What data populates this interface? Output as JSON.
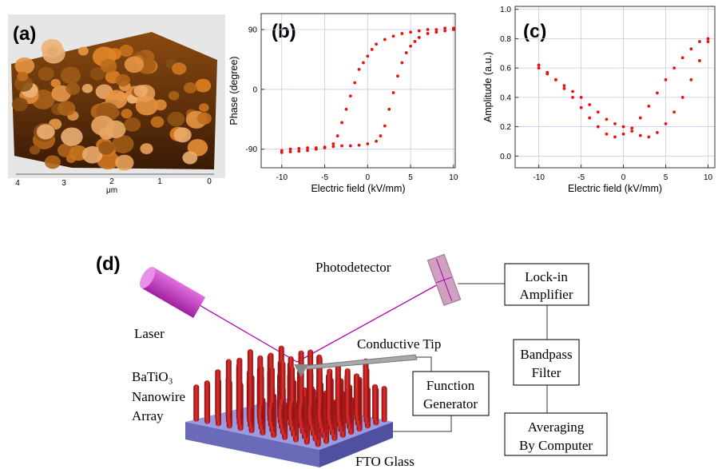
{
  "panel_labels": [
    "(a)",
    "(b)",
    "(c)",
    "(d)"
  ],
  "afm": {
    "x_axis_label": "μm",
    "x_ticks": [
      "4",
      "3",
      "2",
      "1",
      "0"
    ]
  },
  "chart_data": [
    {
      "type": "scatter",
      "x_label": "Electric field (kV/mm)",
      "y_label": "Phase (degree)",
      "color": "#e8140c",
      "x": [
        -10,
        -9,
        -8,
        -7,
        -6,
        -5,
        -4,
        -3,
        -2,
        -1,
        0,
        1,
        1.5,
        2,
        2.5,
        3,
        3.5,
        4,
        4.5,
        5,
        5.5,
        6,
        7,
        8,
        9,
        10,
        10,
        9,
        8,
        7,
        6,
        5,
        4,
        3,
        2,
        1,
        0.5,
        0,
        -0.5,
        -1,
        -1.5,
        -2,
        -2.5,
        -3,
        -3.5,
        -4,
        -5,
        -6,
        -7,
        -8,
        -9,
        -10
      ],
      "values": [
        -92,
        -90,
        -89,
        -88,
        -88,
        -87,
        -86,
        -85,
        -85,
        -84,
        -82,
        -78,
        -70,
        -55,
        -30,
        -5,
        20,
        40,
        55,
        65,
        72,
        78,
        84,
        86,
        88,
        90,
        92,
        92,
        90,
        90,
        88,
        86,
        84,
        80,
        75,
        68,
        60,
        50,
        40,
        30,
        10,
        -10,
        -30,
        -50,
        -70,
        -82,
        -88,
        -90,
        -92,
        -93,
        -94,
        -95
      ],
      "xlim": [
        -12.4,
        10.2
      ],
      "ylim": [
        -118,
        114
      ],
      "xticks": [
        -10,
        -5,
        0,
        5,
        10
      ],
      "yticks": [
        -90,
        0,
        90
      ],
      "grid": true
    },
    {
      "type": "scatter",
      "x_label": "Electric field (kV/mm)",
      "y_label": "Amplitude (a.u.)",
      "color": "#e8140c",
      "x": [
        -10,
        -9,
        -8,
        -7,
        -6,
        -5,
        -4,
        -3,
        -2,
        -1,
        0,
        1,
        2,
        3,
        4,
        5,
        6,
        7,
        8,
        9,
        10,
        10,
        9,
        8,
        7,
        6,
        5,
        4,
        3,
        2,
        1,
        0,
        -1,
        -2,
        -3,
        -4,
        -5,
        -6,
        -7,
        -8,
        -9,
        -10
      ],
      "values": [
        0.62,
        0.57,
        0.52,
        0.46,
        0.4,
        0.33,
        0.26,
        0.2,
        0.15,
        0.13,
        0.15,
        0.19,
        0.26,
        0.34,
        0.43,
        0.52,
        0.6,
        0.67,
        0.73,
        0.78,
        0.8,
        0.78,
        0.65,
        0.52,
        0.4,
        0.3,
        0.22,
        0.16,
        0.13,
        0.14,
        0.17,
        0.2,
        0.22,
        0.25,
        0.3,
        0.35,
        0.4,
        0.44,
        0.48,
        0.52,
        0.56,
        0.6
      ],
      "xlim": [
        -12.8,
        10.8
      ],
      "ylim": [
        -0.08,
        1.02
      ],
      "xticks": [
        -10,
        -5,
        0,
        5,
        10
      ],
      "yticks": [
        {
          "value": 0,
          "label": "0.0"
        },
        0.2,
        0.4,
        0.6,
        0.8,
        {
          "value": 1,
          "label": "1.0"
        }
      ],
      "grid": true
    }
  ],
  "diagram": {
    "photodetector": "Photodetector",
    "lock_in": [
      "Lock-in",
      "Amplifier"
    ],
    "laser": "Laser",
    "conductive_tip": "Conductive Tip",
    "bandpass": [
      "Bandpass",
      "Filter"
    ],
    "nanowire": [
      "BaTiO₃",
      "Nanowire",
      "Array"
    ],
    "function_generator": [
      "Function",
      "Generator"
    ],
    "averaging": [
      "Averaging",
      "By Computer"
    ],
    "fto_glass": "FTO Glass"
  }
}
